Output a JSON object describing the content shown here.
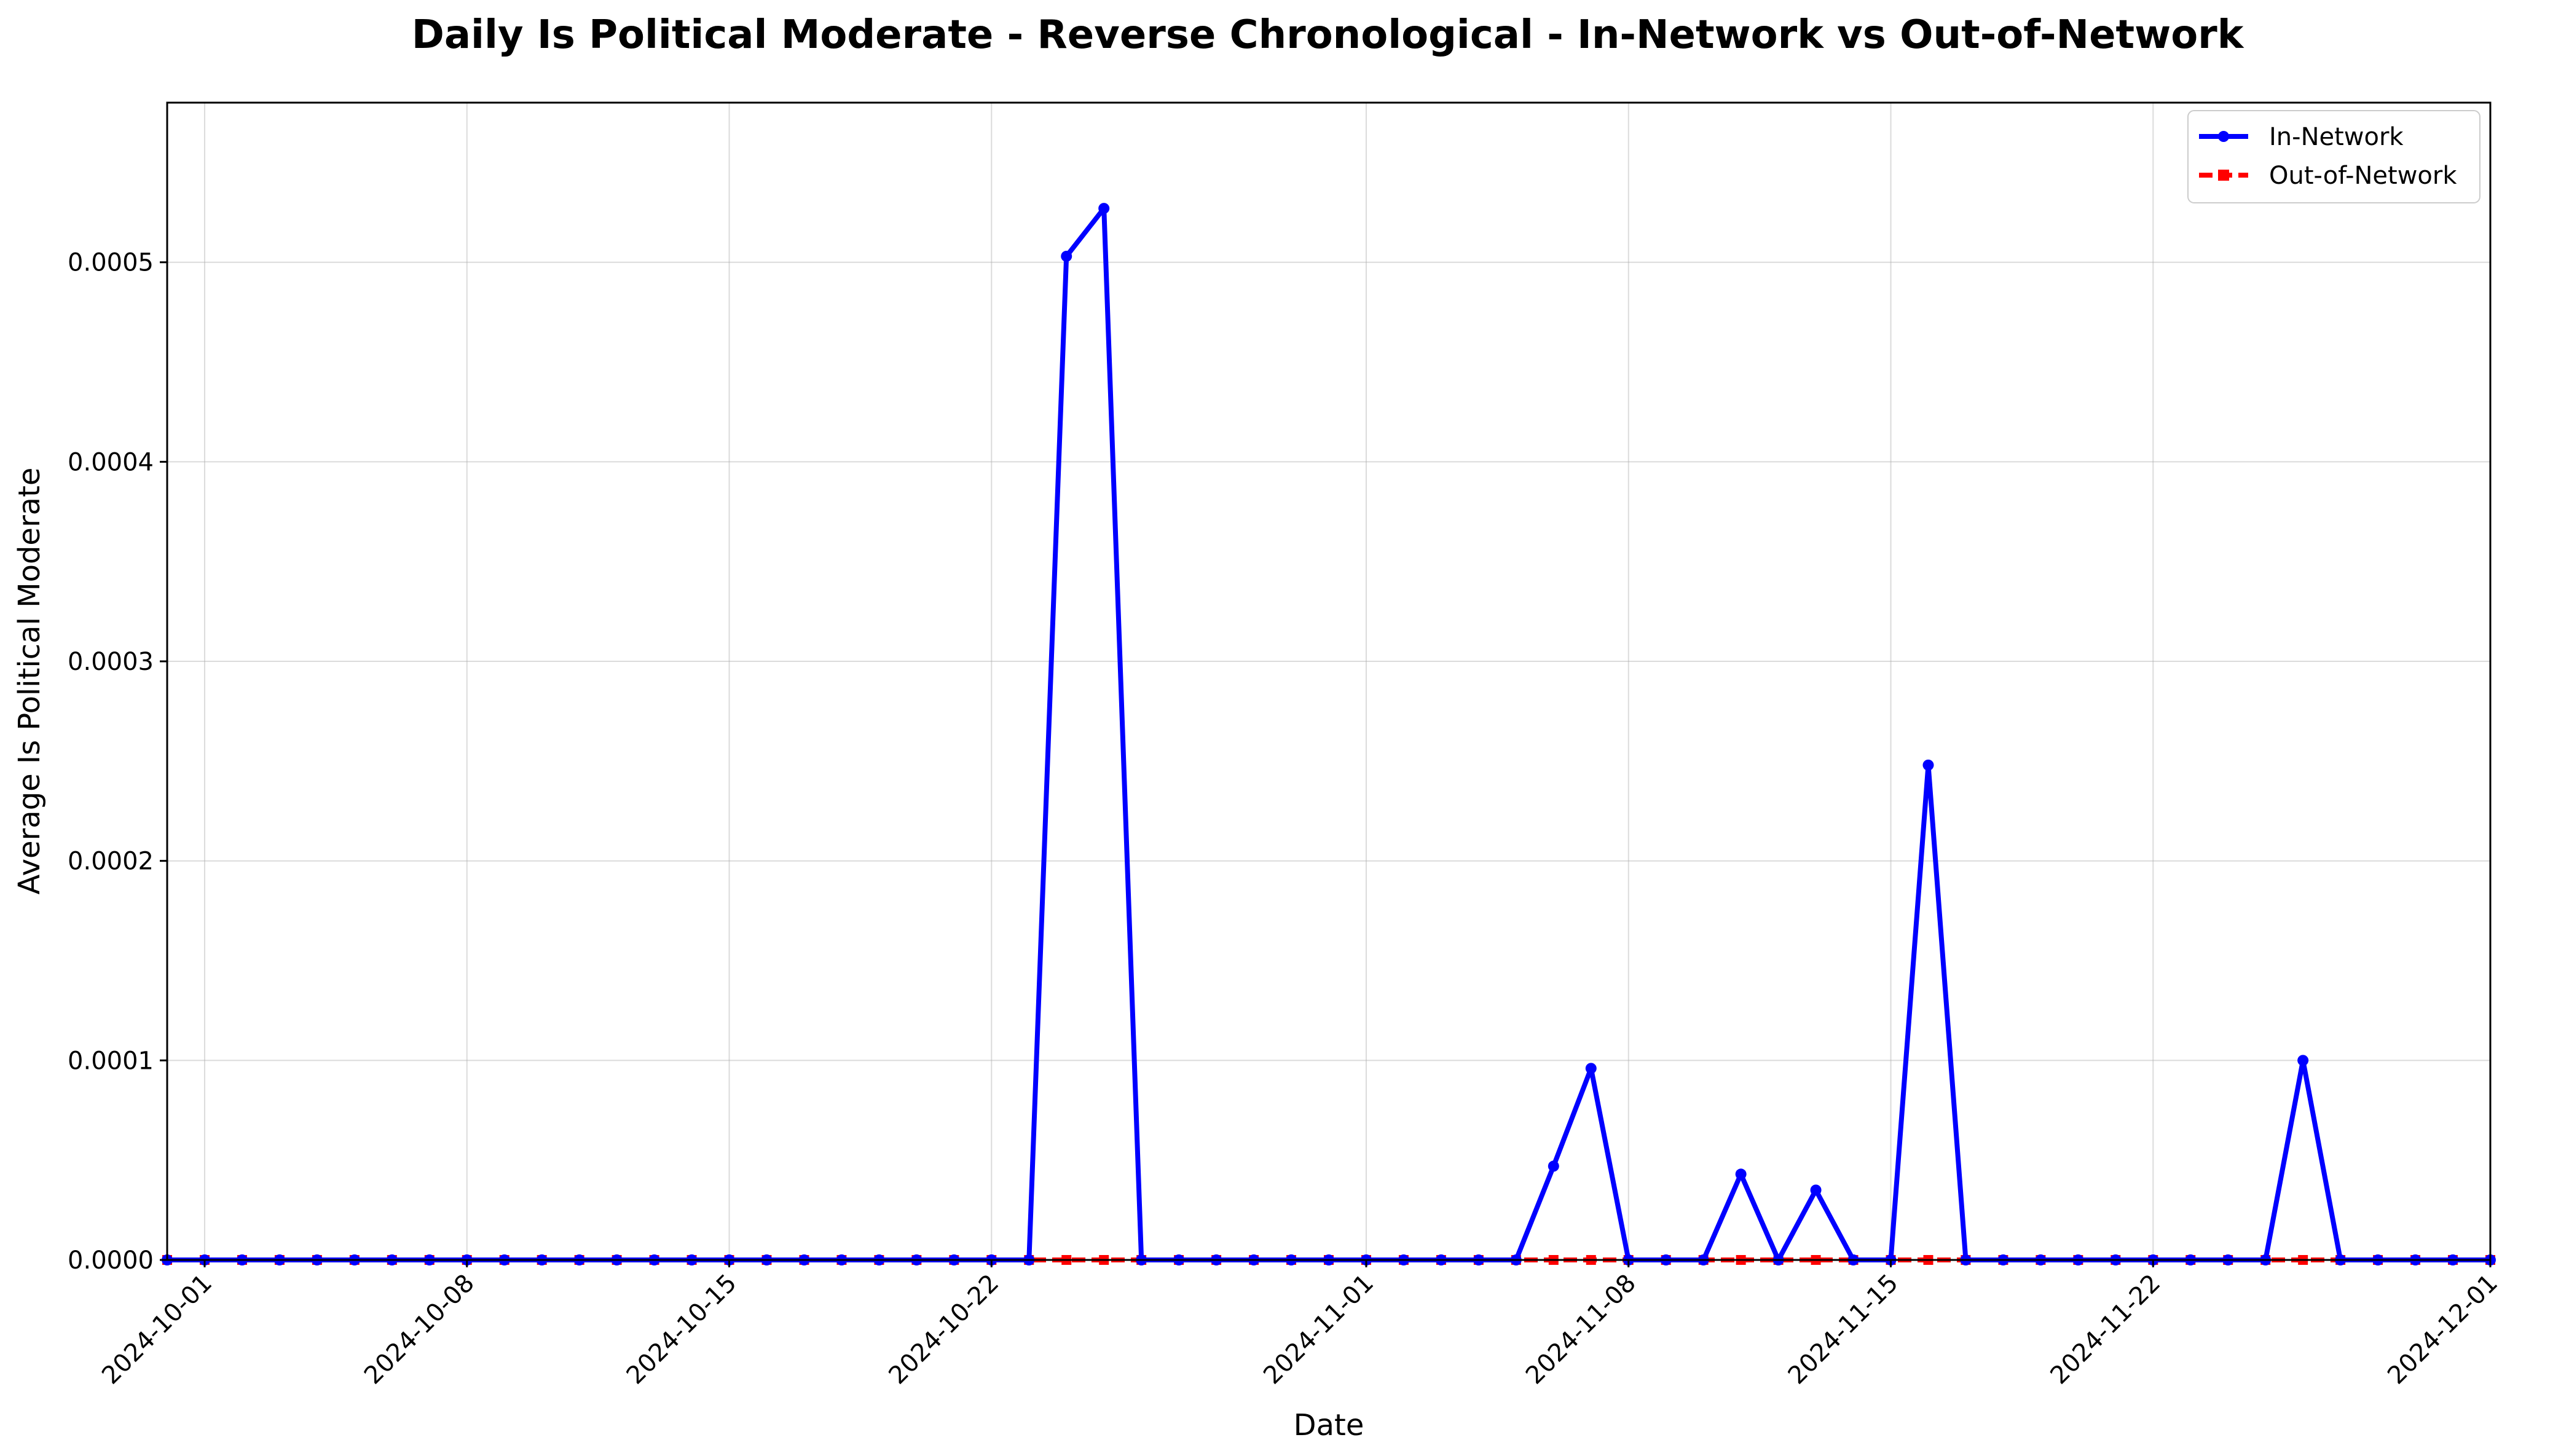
{
  "chart_data": {
    "type": "line",
    "title": "Daily Is Political Moderate - Reverse Chronological - In-Network vs Out-of-Network",
    "xlabel": "Date",
    "ylabel": "Average Is Political Moderate",
    "xlim": [
      "2024-09-30",
      "2024-12-01"
    ],
    "ylim": [
      0,
      0.00058
    ],
    "x_ticks": [
      "2024-10-01",
      "2024-10-08",
      "2024-10-15",
      "2024-10-22",
      "2024-11-01",
      "2024-11-08",
      "2024-11-15",
      "2024-11-22",
      "2024-12-01"
    ],
    "y_ticks": [
      0,
      0.0001,
      0.0002,
      0.0003,
      0.0004,
      0.0005
    ],
    "y_tick_labels": [
      "0.0000",
      "0.0001",
      "0.0002",
      "0.0003",
      "0.0004",
      "0.0005"
    ],
    "grid": true,
    "legend_position": "top-right",
    "series": [
      {
        "name": "In-Network",
        "color": "#0000ff",
        "line_style": "solid",
        "marker": "circle",
        "points": [
          [
            "2024-09-30",
            0
          ],
          [
            "2024-10-01",
            0
          ],
          [
            "2024-10-02",
            0
          ],
          [
            "2024-10-03",
            0
          ],
          [
            "2024-10-04",
            0
          ],
          [
            "2024-10-05",
            0
          ],
          [
            "2024-10-06",
            0
          ],
          [
            "2024-10-07",
            0
          ],
          [
            "2024-10-08",
            0
          ],
          [
            "2024-10-09",
            0
          ],
          [
            "2024-10-10",
            0
          ],
          [
            "2024-10-11",
            0
          ],
          [
            "2024-10-12",
            0
          ],
          [
            "2024-10-13",
            0
          ],
          [
            "2024-10-14",
            0
          ],
          [
            "2024-10-15",
            0
          ],
          [
            "2024-10-16",
            0
          ],
          [
            "2024-10-17",
            0
          ],
          [
            "2024-10-18",
            0
          ],
          [
            "2024-10-19",
            0
          ],
          [
            "2024-10-20",
            0
          ],
          [
            "2024-10-21",
            0
          ],
          [
            "2024-10-22",
            0
          ],
          [
            "2024-10-23",
            0
          ],
          [
            "2024-10-24",
            0.000503
          ],
          [
            "2024-10-25",
            0.000527
          ],
          [
            "2024-10-26",
            0
          ],
          [
            "2024-10-27",
            0
          ],
          [
            "2024-10-28",
            0
          ],
          [
            "2024-10-29",
            0
          ],
          [
            "2024-10-30",
            0
          ],
          [
            "2024-10-31",
            0
          ],
          [
            "2024-11-01",
            0
          ],
          [
            "2024-11-02",
            0
          ],
          [
            "2024-11-03",
            0
          ],
          [
            "2024-11-04",
            0
          ],
          [
            "2024-11-05",
            0
          ],
          [
            "2024-11-06",
            4.7e-05
          ],
          [
            "2024-11-07",
            9.6e-05
          ],
          [
            "2024-11-08",
            0
          ],
          [
            "2024-11-09",
            0
          ],
          [
            "2024-11-10",
            0
          ],
          [
            "2024-11-11",
            4.3e-05
          ],
          [
            "2024-11-12",
            0
          ],
          [
            "2024-11-13",
            3.5e-05
          ],
          [
            "2024-11-14",
            0
          ],
          [
            "2024-11-15",
            0
          ],
          [
            "2024-11-16",
            0.000248
          ],
          [
            "2024-11-17",
            0
          ],
          [
            "2024-11-18",
            0
          ],
          [
            "2024-11-19",
            0
          ],
          [
            "2024-11-20",
            0
          ],
          [
            "2024-11-21",
            0
          ],
          [
            "2024-11-22",
            0
          ],
          [
            "2024-11-23",
            0
          ],
          [
            "2024-11-24",
            0
          ],
          [
            "2024-11-25",
            0
          ],
          [
            "2024-11-26",
            0.0001
          ],
          [
            "2024-11-27",
            0
          ],
          [
            "2024-11-28",
            0
          ],
          [
            "2024-11-29",
            0
          ],
          [
            "2024-11-30",
            0
          ],
          [
            "2024-12-01",
            0
          ]
        ]
      },
      {
        "name": "Out-of-Network",
        "color": "#ff0000",
        "line_style": "dashed",
        "marker": "square",
        "points": [
          [
            "2024-09-30",
            0
          ],
          [
            "2024-10-01",
            0
          ],
          [
            "2024-10-02",
            0
          ],
          [
            "2024-10-03",
            0
          ],
          [
            "2024-10-04",
            0
          ],
          [
            "2024-10-05",
            0
          ],
          [
            "2024-10-06",
            0
          ],
          [
            "2024-10-07",
            0
          ],
          [
            "2024-10-08",
            0
          ],
          [
            "2024-10-09",
            0
          ],
          [
            "2024-10-10",
            0
          ],
          [
            "2024-10-11",
            0
          ],
          [
            "2024-10-12",
            0
          ],
          [
            "2024-10-13",
            0
          ],
          [
            "2024-10-14",
            0
          ],
          [
            "2024-10-15",
            0
          ],
          [
            "2024-10-16",
            0
          ],
          [
            "2024-10-17",
            0
          ],
          [
            "2024-10-18",
            0
          ],
          [
            "2024-10-19",
            0
          ],
          [
            "2024-10-20",
            0
          ],
          [
            "2024-10-21",
            0
          ],
          [
            "2024-10-22",
            0
          ],
          [
            "2024-10-23",
            0
          ],
          [
            "2024-10-24",
            0
          ],
          [
            "2024-10-25",
            0
          ],
          [
            "2024-10-26",
            0
          ],
          [
            "2024-10-27",
            0
          ],
          [
            "2024-10-28",
            0
          ],
          [
            "2024-10-29",
            0
          ],
          [
            "2024-10-30",
            0
          ],
          [
            "2024-10-31",
            0
          ],
          [
            "2024-11-01",
            0
          ],
          [
            "2024-11-02",
            0
          ],
          [
            "2024-11-03",
            0
          ],
          [
            "2024-11-04",
            0
          ],
          [
            "2024-11-05",
            0
          ],
          [
            "2024-11-06",
            0
          ],
          [
            "2024-11-07",
            0
          ],
          [
            "2024-11-08",
            0
          ],
          [
            "2024-11-09",
            0
          ],
          [
            "2024-11-10",
            0
          ],
          [
            "2024-11-11",
            0
          ],
          [
            "2024-11-12",
            0
          ],
          [
            "2024-11-13",
            0
          ],
          [
            "2024-11-14",
            0
          ],
          [
            "2024-11-15",
            0
          ],
          [
            "2024-11-16",
            0
          ],
          [
            "2024-11-17",
            0
          ],
          [
            "2024-11-18",
            0
          ],
          [
            "2024-11-19",
            0
          ],
          [
            "2024-11-20",
            0
          ],
          [
            "2024-11-21",
            0
          ],
          [
            "2024-11-22",
            0
          ],
          [
            "2024-11-23",
            0
          ],
          [
            "2024-11-24",
            0
          ],
          [
            "2024-11-25",
            0
          ],
          [
            "2024-11-26",
            0
          ],
          [
            "2024-11-27",
            0
          ],
          [
            "2024-11-28",
            0
          ],
          [
            "2024-11-29",
            0
          ],
          [
            "2024-11-30",
            0
          ],
          [
            "2024-12-01",
            0
          ]
        ]
      }
    ]
  }
}
